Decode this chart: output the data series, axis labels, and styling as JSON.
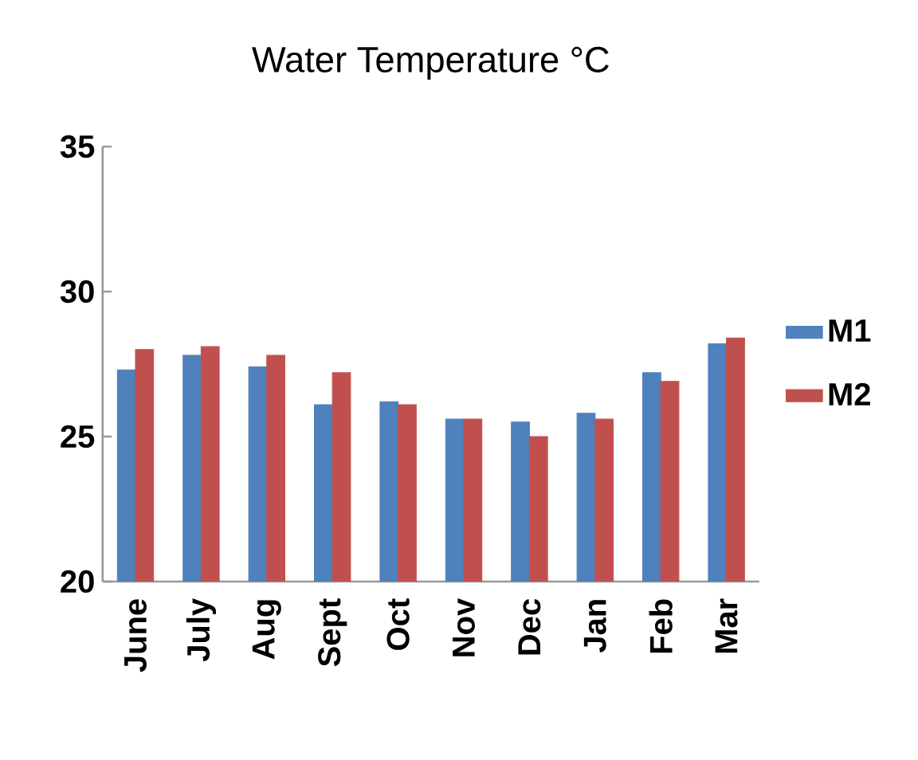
{
  "chart_data": {
    "type": "bar",
    "title": "Water Temperature °C",
    "categories": [
      "June",
      "July",
      "Aug",
      "Sept",
      "Oct",
      "Nov",
      "Dec",
      "Jan",
      "Feb",
      "Mar"
    ],
    "series": [
      {
        "name": "M1",
        "color": "#4f81bd",
        "values": [
          27.3,
          27.8,
          27.4,
          26.1,
          26.2,
          25.6,
          25.5,
          25.8,
          27.2,
          28.2
        ]
      },
      {
        "name": "M2",
        "color": "#c0504d",
        "values": [
          28.0,
          28.1,
          27.8,
          27.2,
          26.1,
          25.6,
          25.0,
          25.6,
          26.9,
          28.4
        ]
      }
    ],
    "ylim": [
      20,
      35
    ],
    "yticks": [
      20,
      25,
      30,
      35
    ],
    "grid": false,
    "legend": "right"
  }
}
